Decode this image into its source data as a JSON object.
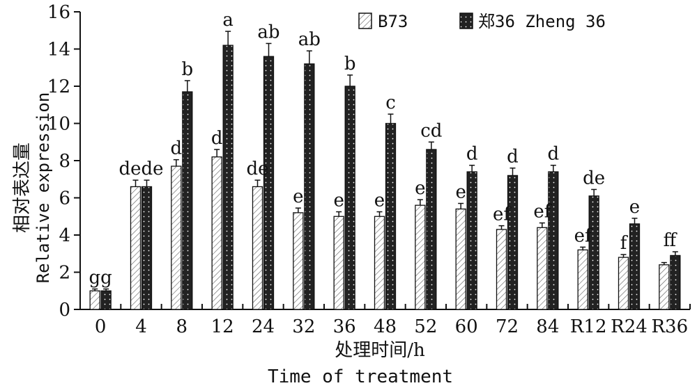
{
  "chart_data": {
    "type": "bar",
    "title": "",
    "xlabel_cn": "处理时间/h",
    "xlabel_en": "Time of treatment",
    "ylabel_cn": "相对表达量",
    "ylabel_en": "Relative expression",
    "ylim": [
      0,
      16
    ],
    "yticks": [
      0,
      2,
      4,
      6,
      8,
      10,
      12,
      14,
      16
    ],
    "grid": false,
    "legend_position": "top-right",
    "categories": [
      "0",
      "4",
      "8",
      "12",
      "24",
      "32",
      "36",
      "48",
      "52",
      "60",
      "72",
      "84",
      "R12",
      "R24",
      "R36"
    ],
    "series": [
      {
        "name": "B73",
        "pattern": "hatch",
        "values": [
          1.0,
          6.6,
          7.7,
          8.2,
          6.6,
          5.2,
          5.0,
          5.0,
          5.6,
          5.4,
          4.3,
          4.4,
          3.2,
          2.8,
          2.4
        ],
        "errors": [
          0.1,
          0.35,
          0.35,
          0.4,
          0.35,
          0.25,
          0.25,
          0.25,
          0.3,
          0.3,
          0.2,
          0.25,
          0.15,
          0.15,
          0.12
        ]
      },
      {
        "name": "郑36 Zheng 36",
        "pattern": "dotted-dark",
        "values": [
          1.0,
          6.6,
          11.7,
          14.2,
          13.6,
          13.2,
          12.0,
          10.0,
          8.6,
          7.4,
          7.2,
          7.4,
          6.1,
          4.6,
          2.9
        ],
        "errors": [
          0.1,
          0.35,
          0.6,
          0.75,
          0.7,
          0.7,
          0.6,
          0.5,
          0.4,
          0.35,
          0.4,
          0.35,
          0.35,
          0.3,
          0.2
        ]
      }
    ],
    "significance_labels": [
      {
        "category": "0",
        "text": "gg"
      },
      {
        "category": "4",
        "text": "dede"
      },
      {
        "category": "8",
        "text": "d",
        "series": 0
      },
      {
        "category": "8",
        "text": "b",
        "series": 1
      },
      {
        "category": "12",
        "text": "d",
        "series": 0
      },
      {
        "category": "12",
        "text": "a",
        "series": 1
      },
      {
        "category": "24",
        "text": "de",
        "series": 0
      },
      {
        "category": "24",
        "text": "ab",
        "series": 1
      },
      {
        "category": "32",
        "text": "e",
        "series": 0
      },
      {
        "category": "32",
        "text": "ab",
        "series": 1
      },
      {
        "category": "36",
        "text": "e",
        "series": 0
      },
      {
        "category": "36",
        "text": "b",
        "series": 1
      },
      {
        "category": "48",
        "text": "e",
        "series": 0
      },
      {
        "category": "48",
        "text": "c",
        "series": 1
      },
      {
        "category": "52",
        "text": "e",
        "series": 0
      },
      {
        "category": "52",
        "text": "cd",
        "series": 1
      },
      {
        "category": "60",
        "text": "e",
        "series": 0
      },
      {
        "category": "60",
        "text": "d",
        "series": 1
      },
      {
        "category": "72",
        "text": "ef",
        "series": 0
      },
      {
        "category": "72",
        "text": "d",
        "series": 1
      },
      {
        "category": "84",
        "text": "ef",
        "series": 0
      },
      {
        "category": "84",
        "text": "d",
        "series": 1
      },
      {
        "category": "R12",
        "text": "ef",
        "series": 0
      },
      {
        "category": "R12",
        "text": "de",
        "series": 1
      },
      {
        "category": "R24",
        "text": "f",
        "series": 0
      },
      {
        "category": "R24",
        "text": "e",
        "series": 1
      },
      {
        "category": "R36",
        "text": "ff"
      }
    ],
    "colors": {
      "series0_fill": "#ffffff",
      "series0_hatch": "#555555",
      "series1_fill": "#222222",
      "series1_dots": "#ffffff",
      "axis": "#111111"
    }
  }
}
